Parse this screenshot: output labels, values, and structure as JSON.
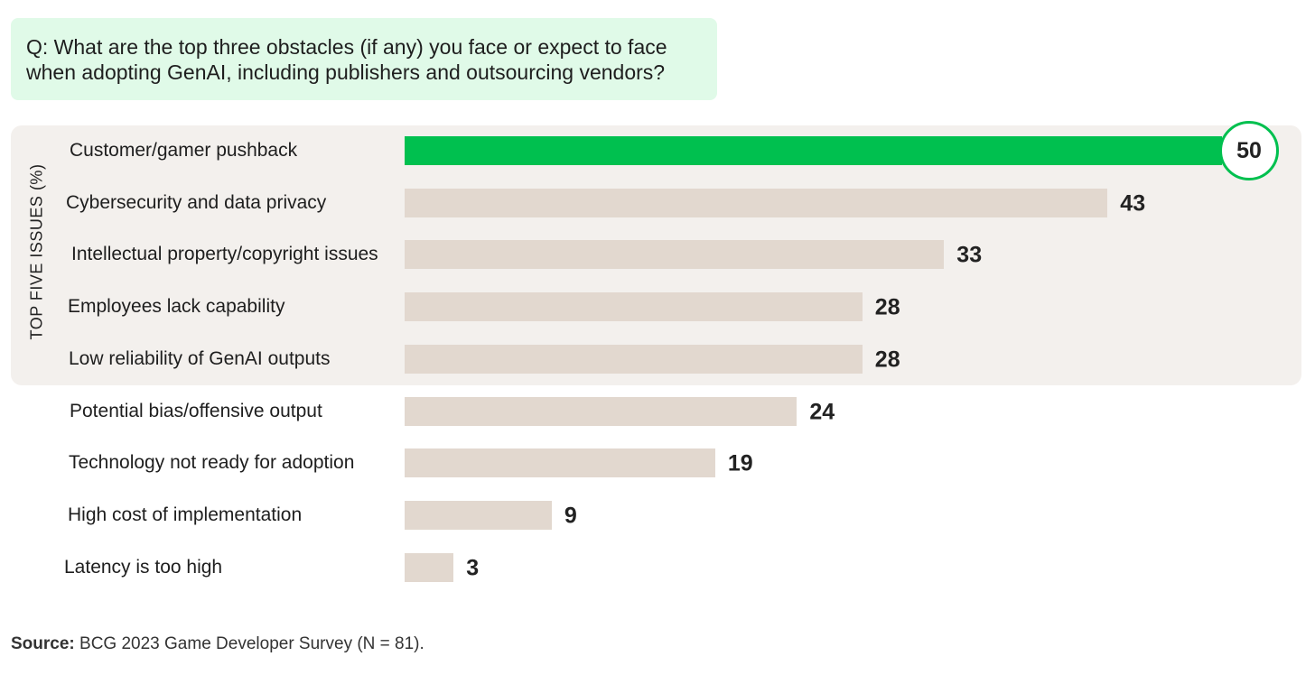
{
  "question": {
    "line1": "Q: What are the top three obstacles (if any) you face or expect to face",
    "line2": "when adopting GenAI, including publishers and outsourcing vendors?"
  },
  "panel_label": "TOP FIVE ISSUES (%)",
  "source": {
    "label": "Source:",
    "text": "BCG 2023 Game Developer Survey (N = 81)."
  },
  "colors": {
    "highlight": "#00c04f",
    "bar": "#e2d8cf",
    "panel": "#f3f0ed",
    "question_bg": "#e0fae8"
  },
  "chart_data": {
    "type": "bar",
    "orientation": "horizontal",
    "categories": [
      "Customer/gamer pushback",
      "Cybersecurity and data privacy",
      "Intellectual property/copyright issues",
      "Employees lack capability",
      "Low reliability of GenAI outputs",
      "Potential bias/offensive output",
      "Technology not ready for adoption",
      "High cost of implementation",
      "Latency is too high"
    ],
    "values": [
      50,
      43,
      33,
      28,
      28,
      24,
      19,
      9,
      3
    ],
    "highlighted_index": 0,
    "top_group_count": 5,
    "xlim": [
      0,
      50
    ],
    "grid": false,
    "legend": false
  }
}
